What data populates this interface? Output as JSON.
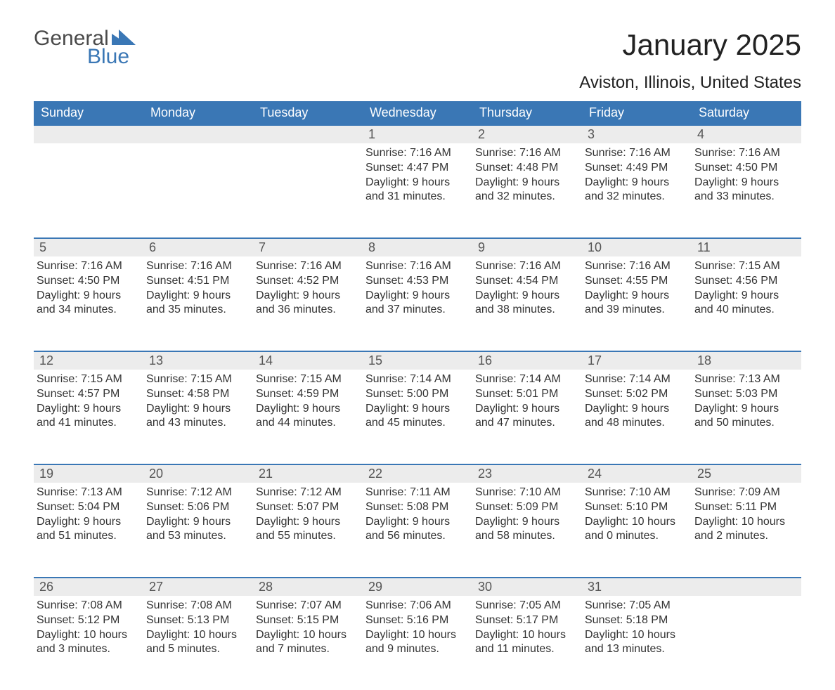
{
  "logo": {
    "word1": "General",
    "word2": "Blue"
  },
  "title": "January 2025",
  "location": "Aviston, Illinois, United States",
  "colors": {
    "accent": "#3a77b5",
    "header_text": "#ffffff",
    "daynum_bg": "#ececec",
    "text": "#333333",
    "bg": "#ffffff"
  },
  "weekdays": [
    "Sunday",
    "Monday",
    "Tuesday",
    "Wednesday",
    "Thursday",
    "Friday",
    "Saturday"
  ],
  "layout": {
    "first_weekday_index": 3,
    "days_in_month": 31,
    "weeks": 5
  },
  "days": {
    "1": {
      "sunrise": "7:16 AM",
      "sunset": "4:47 PM",
      "daylight": "9 hours and 31 minutes."
    },
    "2": {
      "sunrise": "7:16 AM",
      "sunset": "4:48 PM",
      "daylight": "9 hours and 32 minutes."
    },
    "3": {
      "sunrise": "7:16 AM",
      "sunset": "4:49 PM",
      "daylight": "9 hours and 32 minutes."
    },
    "4": {
      "sunrise": "7:16 AM",
      "sunset": "4:50 PM",
      "daylight": "9 hours and 33 minutes."
    },
    "5": {
      "sunrise": "7:16 AM",
      "sunset": "4:50 PM",
      "daylight": "9 hours and 34 minutes."
    },
    "6": {
      "sunrise": "7:16 AM",
      "sunset": "4:51 PM",
      "daylight": "9 hours and 35 minutes."
    },
    "7": {
      "sunrise": "7:16 AM",
      "sunset": "4:52 PM",
      "daylight": "9 hours and 36 minutes."
    },
    "8": {
      "sunrise": "7:16 AM",
      "sunset": "4:53 PM",
      "daylight": "9 hours and 37 minutes."
    },
    "9": {
      "sunrise": "7:16 AM",
      "sunset": "4:54 PM",
      "daylight": "9 hours and 38 minutes."
    },
    "10": {
      "sunrise": "7:16 AM",
      "sunset": "4:55 PM",
      "daylight": "9 hours and 39 minutes."
    },
    "11": {
      "sunrise": "7:15 AM",
      "sunset": "4:56 PM",
      "daylight": "9 hours and 40 minutes."
    },
    "12": {
      "sunrise": "7:15 AM",
      "sunset": "4:57 PM",
      "daylight": "9 hours and 41 minutes."
    },
    "13": {
      "sunrise": "7:15 AM",
      "sunset": "4:58 PM",
      "daylight": "9 hours and 43 minutes."
    },
    "14": {
      "sunrise": "7:15 AM",
      "sunset": "4:59 PM",
      "daylight": "9 hours and 44 minutes."
    },
    "15": {
      "sunrise": "7:14 AM",
      "sunset": "5:00 PM",
      "daylight": "9 hours and 45 minutes."
    },
    "16": {
      "sunrise": "7:14 AM",
      "sunset": "5:01 PM",
      "daylight": "9 hours and 47 minutes."
    },
    "17": {
      "sunrise": "7:14 AM",
      "sunset": "5:02 PM",
      "daylight": "9 hours and 48 minutes."
    },
    "18": {
      "sunrise": "7:13 AM",
      "sunset": "5:03 PM",
      "daylight": "9 hours and 50 minutes."
    },
    "19": {
      "sunrise": "7:13 AM",
      "sunset": "5:04 PM",
      "daylight": "9 hours and 51 minutes."
    },
    "20": {
      "sunrise": "7:12 AM",
      "sunset": "5:06 PM",
      "daylight": "9 hours and 53 minutes."
    },
    "21": {
      "sunrise": "7:12 AM",
      "sunset": "5:07 PM",
      "daylight": "9 hours and 55 minutes."
    },
    "22": {
      "sunrise": "7:11 AM",
      "sunset": "5:08 PM",
      "daylight": "9 hours and 56 minutes."
    },
    "23": {
      "sunrise": "7:10 AM",
      "sunset": "5:09 PM",
      "daylight": "9 hours and 58 minutes."
    },
    "24": {
      "sunrise": "7:10 AM",
      "sunset": "5:10 PM",
      "daylight": "10 hours and 0 minutes."
    },
    "25": {
      "sunrise": "7:09 AM",
      "sunset": "5:11 PM",
      "daylight": "10 hours and 2 minutes."
    },
    "26": {
      "sunrise": "7:08 AM",
      "sunset": "5:12 PM",
      "daylight": "10 hours and 3 minutes."
    },
    "27": {
      "sunrise": "7:08 AM",
      "sunset": "5:13 PM",
      "daylight": "10 hours and 5 minutes."
    },
    "28": {
      "sunrise": "7:07 AM",
      "sunset": "5:15 PM",
      "daylight": "10 hours and 7 minutes."
    },
    "29": {
      "sunrise": "7:06 AM",
      "sunset": "5:16 PM",
      "daylight": "10 hours and 9 minutes."
    },
    "30": {
      "sunrise": "7:05 AM",
      "sunset": "5:17 PM",
      "daylight": "10 hours and 11 minutes."
    },
    "31": {
      "sunrise": "7:05 AM",
      "sunset": "5:18 PM",
      "daylight": "10 hours and 13 minutes."
    }
  },
  "labels": {
    "sunrise": "Sunrise: ",
    "sunset": "Sunset: ",
    "daylight": "Daylight: "
  }
}
